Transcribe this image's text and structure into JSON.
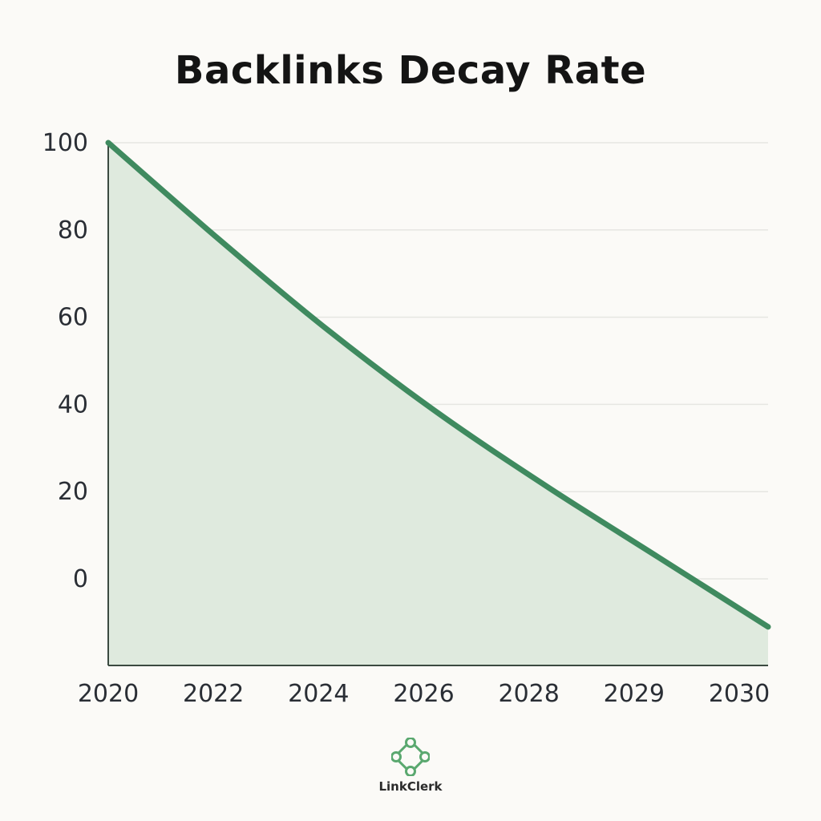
{
  "chart_data": {
    "type": "area",
    "title": "Backlinks Decay Rate",
    "xlabel": "",
    "ylabel": "",
    "x_ticks": [
      "2020",
      "2022",
      "2024",
      "2026",
      "2028",
      "2029",
      "2030"
    ],
    "y_ticks": [
      0,
      20,
      40,
      60,
      80,
      100
    ],
    "ylim": [
      -20,
      100
    ],
    "grid": true,
    "legend": "none",
    "series": [
      {
        "x": [
          0,
          1,
          2,
          3,
          4,
          5,
          6
        ],
        "values": [
          100,
          78,
          57,
          38,
          21,
          5,
          -11
        ]
      }
    ],
    "colors": {
      "line": "#3f8a5f",
      "fill": "#dfeade",
      "grid": "#e6e6e2",
      "axis": "#3b4a40"
    }
  },
  "brand": {
    "name": "LinkClerk",
    "icon": "chain-link-icon"
  }
}
